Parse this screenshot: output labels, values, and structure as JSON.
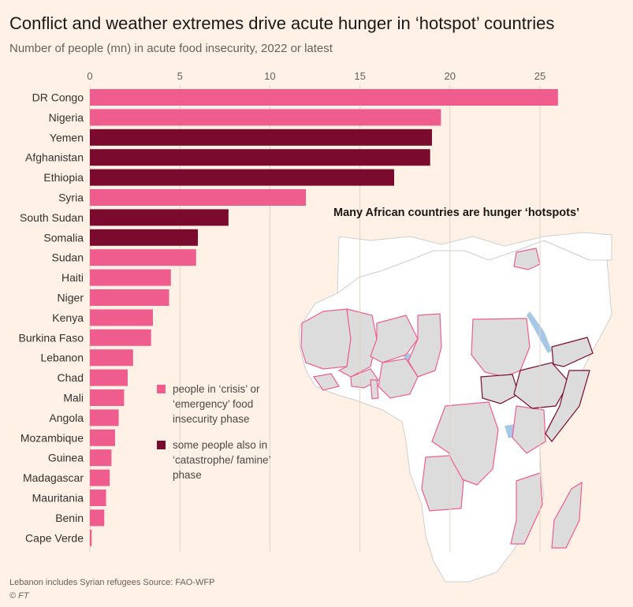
{
  "title": "Conflict and weather extremes drive acute hunger in ‘hotspot’ countries",
  "subtitle": "Number of people (mn) in acute food insecurity, 2022 or latest",
  "colors": {
    "crisis": "#ee5d8e",
    "catastrophe": "#7a0b2e",
    "grid": "#e3d3c6",
    "land": "#ffffff",
    "hotspot_fill": "#dcdcdc",
    "water": "#a6c8e6"
  },
  "legend": {
    "crisis_label": "people in ‘crisis’ or ‘emergency’ food insecurity phase",
    "catastrophe_label": "some people also in ‘catastrophe/ famine’ phase"
  },
  "map": {
    "title": "Many African countries are hunger ‘hotspots’"
  },
  "chart_data": {
    "type": "bar",
    "orientation": "horizontal",
    "title": "Conflict and weather extremes drive acute hunger in ‘hotspot’ countries",
    "subtitle": "Number of people (mn) in acute food insecurity, 2022 or latest",
    "xlim": [
      0,
      26
    ],
    "ticks": [
      0,
      5,
      10,
      15,
      20,
      25
    ],
    "grid": true,
    "categories": [
      "DR Congo",
      "Nigeria",
      "Yemen",
      "Afghanistan",
      "Ethiopia",
      "Syria",
      "South Sudan",
      "Somalia",
      "Sudan",
      "Haiti",
      "Niger",
      "Kenya",
      "Burkina Faso",
      "Lebanon",
      "Chad",
      "Mali",
      "Angola",
      "Mozambique",
      "Guinea",
      "Madagascar",
      "Mauritania",
      "Benin",
      "Cape Verde"
    ],
    "values": [
      26.0,
      19.5,
      19.0,
      18.9,
      16.9,
      12.0,
      7.7,
      6.0,
      5.9,
      4.5,
      4.4,
      3.5,
      3.4,
      2.4,
      2.1,
      1.9,
      1.6,
      1.4,
      1.2,
      1.1,
      0.9,
      0.8,
      0.1
    ],
    "phase": [
      "crisis",
      "crisis",
      "catastrophe",
      "catastrophe",
      "catastrophe",
      "crisis",
      "catastrophe",
      "catastrophe",
      "crisis",
      "crisis",
      "crisis",
      "crisis",
      "crisis",
      "crisis",
      "crisis",
      "crisis",
      "crisis",
      "crisis",
      "crisis",
      "crisis",
      "crisis",
      "crisis",
      "crisis"
    ]
  },
  "footnote": "Lebanon includes Syrian refugees   Source: FAO-WFP",
  "credit": "© FT"
}
